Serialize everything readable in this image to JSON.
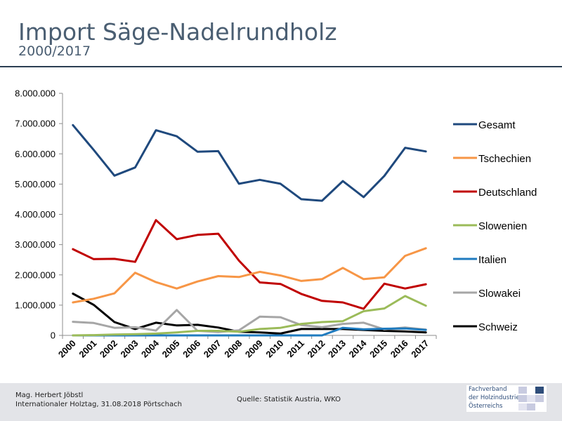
{
  "header": {
    "title": "Import Säge-Nadelrundholz",
    "subtitle": "2000/2017"
  },
  "footer": {
    "author_line1": "Mag. Herbert Jöbstl",
    "author_line2": "Internationaler Holztag, 31.08.2018 Pörtschach",
    "source": "Quelle: Statistik Austria, WKO",
    "logo_line1": "Fachverband",
    "logo_line2": "der Holzindustrie",
    "logo_line3": "Österreichs"
  },
  "chart_data": {
    "type": "line",
    "title": "",
    "xlabel": "",
    "ylabel": "",
    "ylim": [
      0,
      8000000
    ],
    "y_ticks": [
      "0",
      "1.000.000",
      "2.000.000",
      "3.000.000",
      "4.000.000",
      "5.000.000",
      "6.000.000",
      "7.000.000",
      "8.000.000"
    ],
    "grid": false,
    "legend_position": "right",
    "x": [
      "2000",
      "2001",
      "2002",
      "2003",
      "2004",
      "2005",
      "2006",
      "2007",
      "2008",
      "2009",
      "2010",
      "2011",
      "2012",
      "2013",
      "2014",
      "2015",
      "2016",
      "2017"
    ],
    "series": [
      {
        "name": "Gesamt",
        "color": "#1f497d",
        "values": [
          6950000,
          6130000,
          5280000,
          5550000,
          6780000,
          6580000,
          6070000,
          6090000,
          5010000,
          5140000,
          5010000,
          4500000,
          4450000,
          5100000,
          4570000,
          5270000,
          6200000,
          6080000
        ]
      },
      {
        "name": "Tschechien",
        "color": "#f79646",
        "values": [
          1090000,
          1210000,
          1390000,
          2070000,
          1760000,
          1550000,
          1780000,
          1960000,
          1930000,
          2100000,
          1980000,
          1800000,
          1860000,
          2230000,
          1860000,
          1920000,
          2630000,
          2880000
        ]
      },
      {
        "name": "Deutschland",
        "color": "#c00000",
        "values": [
          2850000,
          2520000,
          2530000,
          2430000,
          3810000,
          3180000,
          3320000,
          3360000,
          2470000,
          1750000,
          1700000,
          1370000,
          1140000,
          1090000,
          880000,
          1710000,
          1550000,
          1690000
        ]
      },
      {
        "name": "Slowenien",
        "color": "#9bbb59",
        "values": [
          0,
          10000,
          30000,
          40000,
          60000,
          100000,
          150000,
          150000,
          120000,
          210000,
          250000,
          380000,
          440000,
          470000,
          800000,
          890000,
          1300000,
          980000
        ]
      },
      {
        "name": "Italien",
        "color": "#1f7bbf",
        "values": [
          0,
          0,
          0,
          0,
          0,
          0,
          0,
          0,
          0,
          0,
          0,
          0,
          0,
          250000,
          200000,
          220000,
          230000,
          180000
        ]
      },
      {
        "name": "Slowakei",
        "color": "#a6a6a6",
        "values": [
          450000,
          410000,
          250000,
          270000,
          160000,
          840000,
          150000,
          110000,
          170000,
          620000,
          600000,
          340000,
          270000,
          380000,
          420000,
          200000,
          260000,
          190000
        ]
      },
      {
        "name": "Schweiz",
        "color": "#000000",
        "values": [
          1380000,
          1010000,
          440000,
          210000,
          420000,
          330000,
          350000,
          260000,
          120000,
          100000,
          60000,
          210000,
          210000,
          210000,
          180000,
          150000,
          130000,
          100000
        ]
      }
    ]
  }
}
